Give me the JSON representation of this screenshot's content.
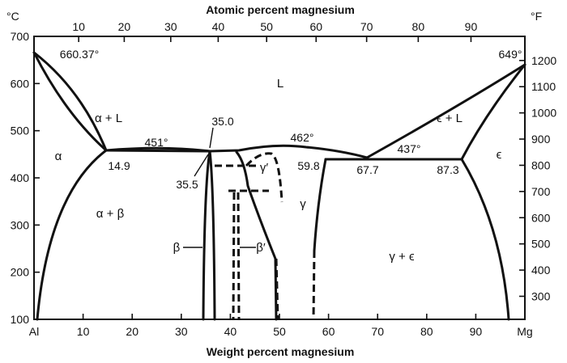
{
  "axes": {
    "top_title": "Atomic percent magnesium",
    "bottom_title": "Weight percent magnesium",
    "left_unit": "°C",
    "right_unit": "°F",
    "bottom_ticks": [
      "Al",
      "10",
      "20",
      "30",
      "40",
      "50",
      "60",
      "70",
      "80",
      "90",
      "Mg"
    ],
    "top_ticks": [
      "10",
      "20",
      "30",
      "40",
      "50",
      "60",
      "70",
      "80",
      "90"
    ],
    "left_ticks": [
      "700",
      "600",
      "500",
      "400",
      "300",
      "200",
      "100"
    ],
    "right_ticks": [
      "1200",
      "1100",
      "1000",
      "900",
      "800",
      "700",
      "600",
      "500",
      "400",
      "300"
    ]
  },
  "regions": {
    "liquid": "L",
    "alpha_liquid": "α + L",
    "epsilon_liquid": "ϵ + L",
    "alpha": "α",
    "epsilon": "ϵ",
    "alpha_beta": "α + β",
    "gamma": "γ",
    "gamma_prime": "γ′",
    "gamma_epsilon": "γ + ϵ",
    "beta": "β",
    "beta_prime": "β′"
  },
  "annotations": {
    "al_melting": "660.37°",
    "mg_melting": "649°",
    "eutectic_left_temp": "451°",
    "max_temp": "462°",
    "eutectic_right_temp": "437°",
    "comp_14_9": "14.9",
    "comp_35_0": "35.0",
    "comp_35_5": "35.5",
    "comp_59_8": "59.8",
    "comp_67_7": "67.7",
    "comp_87_3": "87.3"
  }
}
